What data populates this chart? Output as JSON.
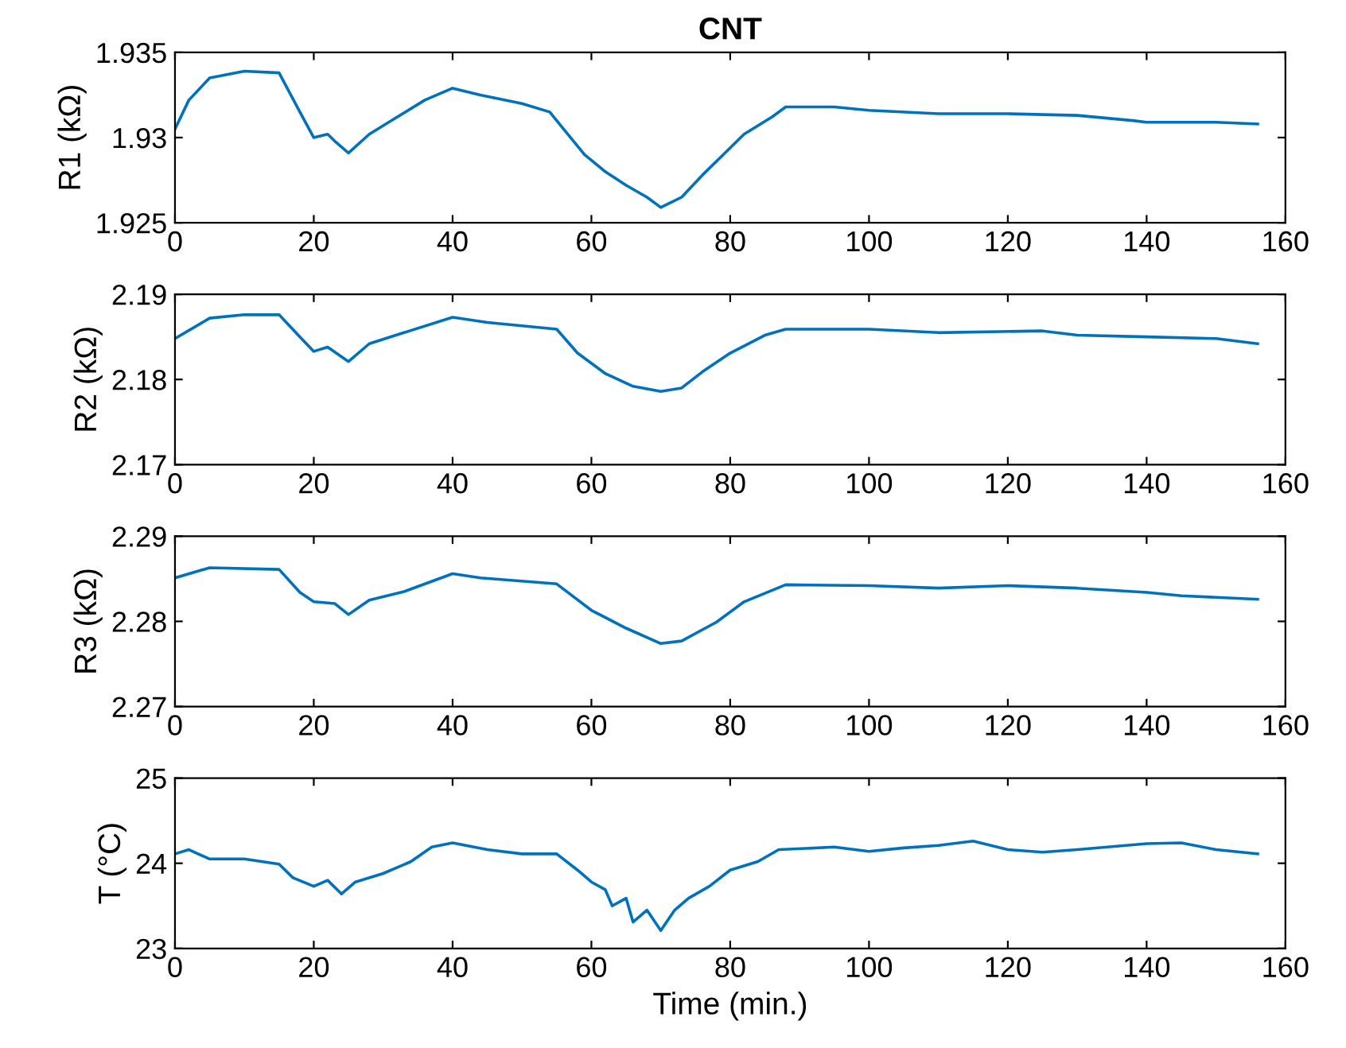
{
  "chart_data": [
    {
      "type": "line",
      "title": "CNT",
      "ylabel": "R1 (kΩ)",
      "xlim": [
        0,
        160
      ],
      "xticks": [
        0,
        20,
        40,
        60,
        80,
        100,
        120,
        140,
        160
      ],
      "ylim": [
        1.925,
        1.935
      ],
      "yticks": [
        1.925,
        1.93,
        1.935
      ],
      "series": [
        {
          "color": "#0072bd",
          "x": [
            0,
            2,
            5,
            10,
            15,
            18,
            20,
            22,
            23,
            25,
            28,
            32,
            36,
            40,
            44,
            50,
            54,
            56,
            59,
            62,
            65,
            68,
            70,
            73,
            76,
            79,
            82,
            86,
            88,
            95,
            100,
            110,
            120,
            130,
            138,
            140,
            150,
            156
          ],
          "values": [
            1.9305,
            1.9322,
            1.9335,
            1.9339,
            1.9338,
            1.9315,
            1.93,
            1.9302,
            1.9298,
            1.9291,
            1.9302,
            1.9312,
            1.9322,
            1.9329,
            1.9325,
            1.932,
            1.9315,
            1.9305,
            1.929,
            1.928,
            1.9272,
            1.9265,
            1.9259,
            1.9265,
            1.9278,
            1.929,
            1.9302,
            1.9312,
            1.9318,
            1.9318,
            1.9316,
            1.9314,
            1.9314,
            1.9313,
            1.931,
            1.9309,
            1.9309,
            1.9308
          ]
        }
      ]
    },
    {
      "type": "line",
      "ylabel": "R2 (kΩ)",
      "xlim": [
        0,
        160
      ],
      "xticks": [
        0,
        20,
        40,
        60,
        80,
        100,
        120,
        140,
        160
      ],
      "ylim": [
        2.17,
        2.19
      ],
      "yticks": [
        2.17,
        2.18,
        2.19
      ],
      "series": [
        {
          "color": "#0072bd",
          "x": [
            0,
            5,
            10,
            15,
            18,
            20,
            22,
            25,
            28,
            33,
            40,
            45,
            55,
            58,
            62,
            66,
            70,
            73,
            76,
            80,
            85,
            88,
            100,
            110,
            125,
            130,
            140,
            150,
            156
          ],
          "values": [
            2.1848,
            2.1872,
            2.1876,
            2.1876,
            2.185,
            2.1833,
            2.1838,
            2.1821,
            2.1842,
            2.1855,
            2.1873,
            2.1867,
            2.1859,
            2.1831,
            2.1807,
            2.1792,
            2.1786,
            2.179,
            2.1809,
            2.1831,
            2.1852,
            2.1859,
            2.1859,
            2.1855,
            2.1857,
            2.1852,
            2.185,
            2.1848,
            2.1842
          ]
        }
      ]
    },
    {
      "type": "line",
      "ylabel": "R3 (kΩ)",
      "xlim": [
        0,
        160
      ],
      "xticks": [
        0,
        20,
        40,
        60,
        80,
        100,
        120,
        140,
        160
      ],
      "ylim": [
        2.27,
        2.29
      ],
      "yticks": [
        2.27,
        2.28,
        2.29
      ],
      "series": [
        {
          "color": "#0072bd",
          "x": [
            0,
            5,
            15,
            18,
            20,
            23,
            25,
            28,
            33,
            40,
            44,
            55,
            60,
            65,
            70,
            73,
            78,
            82,
            88,
            100,
            110,
            120,
            130,
            140,
            145,
            156
          ],
          "values": [
            2.2851,
            2.2863,
            2.2861,
            2.2834,
            2.2823,
            2.2821,
            2.2808,
            2.2825,
            2.2835,
            2.2856,
            2.2851,
            2.2844,
            2.2813,
            2.2792,
            2.2774,
            2.2777,
            2.2799,
            2.2823,
            2.2843,
            2.2842,
            2.2839,
            2.2842,
            2.2839,
            2.2834,
            2.283,
            2.2826
          ]
        }
      ]
    },
    {
      "type": "line",
      "ylabel": "T (°C)",
      "xlabel": "Time (min.)",
      "xlim": [
        0,
        160
      ],
      "xticks": [
        0,
        20,
        40,
        60,
        80,
        100,
        120,
        140,
        160
      ],
      "ylim": [
        23,
        25
      ],
      "yticks": [
        23,
        24,
        25
      ],
      "series": [
        {
          "color": "#0072bd",
          "x": [
            0,
            2,
            5,
            10,
            15,
            17,
            20,
            22,
            24,
            26,
            30,
            34,
            37,
            40,
            45,
            50,
            55,
            58,
            60,
            62,
            63,
            65,
            66,
            68,
            70,
            72,
            74,
            77,
            80,
            84,
            87,
            95,
            100,
            105,
            110,
            115,
            120,
            125,
            130,
            140,
            145,
            150,
            156
          ],
          "values": [
            24.11,
            24.16,
            24.05,
            24.05,
            23.99,
            23.83,
            23.73,
            23.8,
            23.64,
            23.78,
            23.88,
            24.02,
            24.19,
            24.24,
            24.16,
            24.11,
            24.11,
            23.92,
            23.78,
            23.69,
            23.5,
            23.59,
            23.31,
            23.45,
            23.21,
            23.45,
            23.59,
            23.73,
            23.92,
            24.02,
            24.16,
            24.19,
            24.14,
            24.18,
            24.21,
            24.26,
            24.16,
            24.13,
            24.16,
            24.23,
            24.24,
            24.16,
            24.11
          ]
        }
      ]
    }
  ]
}
